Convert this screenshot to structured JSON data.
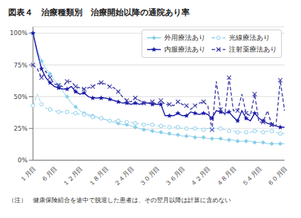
{
  "chart_data": {
    "type": "line",
    "title": "図表４　治療種類別　治療開始以降の通院あり率",
    "subtitle": "（注）　健康保険組合を途中で脱退した患者は、その翌月以降は計算に含めない",
    "categories": [
      "１月目",
      null,
      null,
      null,
      null,
      "６月目",
      null,
      null,
      null,
      null,
      null,
      "１２月目",
      null,
      null,
      null,
      null,
      null,
      "１８月目",
      null,
      null,
      null,
      null,
      null,
      "２４月目",
      null,
      null,
      null,
      null,
      null,
      "３０月目",
      null,
      null,
      null,
      null,
      null,
      "３６月目",
      null,
      null,
      null,
      null,
      null,
      "４２月目",
      null,
      null,
      null,
      null,
      null,
      "４８月目",
      null,
      null,
      null,
      null,
      null,
      "５４月目",
      null,
      null,
      null,
      null,
      null,
      "６０月目"
    ],
    "ylim": [
      0,
      1.05
    ],
    "yticks": [
      {
        "value": 0,
        "label": "0%"
      },
      {
        "value": 0.25,
        "label": "25%"
      },
      {
        "value": 0.5,
        "label": "50%"
      },
      {
        "value": 0.75,
        "label": "75%"
      },
      {
        "value": 1.0,
        "label": "100%"
      }
    ],
    "grid": true,
    "legend": "upper right",
    "series": [
      {
        "name": "外用療法あり",
        "color": "#87CEEB",
        "marker": "diamond",
        "line_style": "solid",
        "values": [
          1.0,
          0.87,
          0.78,
          0.72,
          0.68,
          0.63,
          0.59,
          0.54,
          0.5,
          0.45,
          0.42,
          0.39,
          0.37,
          0.36,
          0.35,
          0.34,
          0.33,
          0.32,
          0.31,
          0.3,
          0.29,
          0.28,
          0.28,
          0.27,
          0.26,
          0.25,
          0.24,
          0.24,
          0.23,
          0.22,
          0.22,
          0.21,
          0.21,
          0.2,
          0.2,
          0.19,
          0.19,
          0.19,
          0.18,
          0.18,
          0.18,
          0.17,
          0.17,
          0.17,
          0.17,
          0.16,
          0.16,
          0.16,
          0.15,
          0.15,
          0.15,
          0.15,
          0.14,
          0.14,
          0.14,
          0.13,
          0.13,
          0.13,
          0.13,
          0.13
        ]
      },
      {
        "name": "光線療法あり",
        "color": "#87CEEB",
        "marker": "open-circle",
        "line_style": "dashed",
        "values": [
          0.43,
          0.52,
          0.44,
          0.41,
          0.4,
          0.39,
          0.38,
          0.38,
          0.38,
          0.37,
          0.37,
          0.36,
          0.36,
          0.35,
          0.34,
          0.33,
          0.33,
          0.32,
          0.31,
          0.31,
          0.31,
          0.3,
          0.3,
          0.3,
          0.29,
          0.29,
          0.28,
          0.28,
          0.28,
          0.27,
          0.27,
          0.27,
          0.26,
          0.26,
          0.26,
          0.25,
          0.25,
          0.25,
          0.25,
          0.25,
          0.24,
          0.25,
          0.25,
          0.25,
          0.25,
          0.24,
          0.23,
          0.23,
          0.22,
          0.22,
          0.22,
          0.22,
          0.23,
          0.23,
          0.22,
          0.23,
          0.23,
          0.22,
          0.21,
          0.21
        ]
      },
      {
        "name": "内服療法あり",
        "color": "#1a1aaa",
        "marker": "star",
        "line_style": "solid",
        "values": [
          1.0,
          0.85,
          0.72,
          0.65,
          0.61,
          0.58,
          0.57,
          0.56,
          0.56,
          0.58,
          0.54,
          0.52,
          0.53,
          0.5,
          0.49,
          0.49,
          0.49,
          0.49,
          0.48,
          0.47,
          0.46,
          0.45,
          0.45,
          0.44,
          0.45,
          0.44,
          0.45,
          0.45,
          0.44,
          0.44,
          0.44,
          0.35,
          0.35,
          0.35,
          0.37,
          0.35,
          0.35,
          0.38,
          0.37,
          0.36,
          0.37,
          0.36,
          0.33,
          0.39,
          0.38,
          0.37,
          0.38,
          0.34,
          0.31,
          0.39,
          0.33,
          0.31,
          0.37,
          0.33,
          0.31,
          0.29,
          0.28,
          0.27,
          0.26,
          0.26
        ]
      },
      {
        "name": "注射薬療法あり",
        "color": "#4444aa",
        "marker": "x",
        "line_style": "dashed",
        "values": [
          0.75,
          0.72,
          0.65,
          0.7,
          0.65,
          0.6,
          0.59,
          0.58,
          0.62,
          0.62,
          0.58,
          0.57,
          0.56,
          0.57,
          0.58,
          0.6,
          0.61,
          0.6,
          0.58,
          0.57,
          0.54,
          0.5,
          0.47,
          0.46,
          0.49,
          0.47,
          0.45,
          0.45,
          0.46,
          0.44,
          0.47,
          0.44,
          0.44,
          0.43,
          0.46,
          0.44,
          0.43,
          0.4,
          0.43,
          0.45,
          0.46,
          0.43,
          0.24,
          0.62,
          0.4,
          0.36,
          0.65,
          0.39,
          0.39,
          0.52,
          0.37,
          0.35,
          0.52,
          0.3,
          0.3,
          0.39,
          0.28,
          0.27,
          0.63,
          0.39
        ]
      }
    ]
  }
}
